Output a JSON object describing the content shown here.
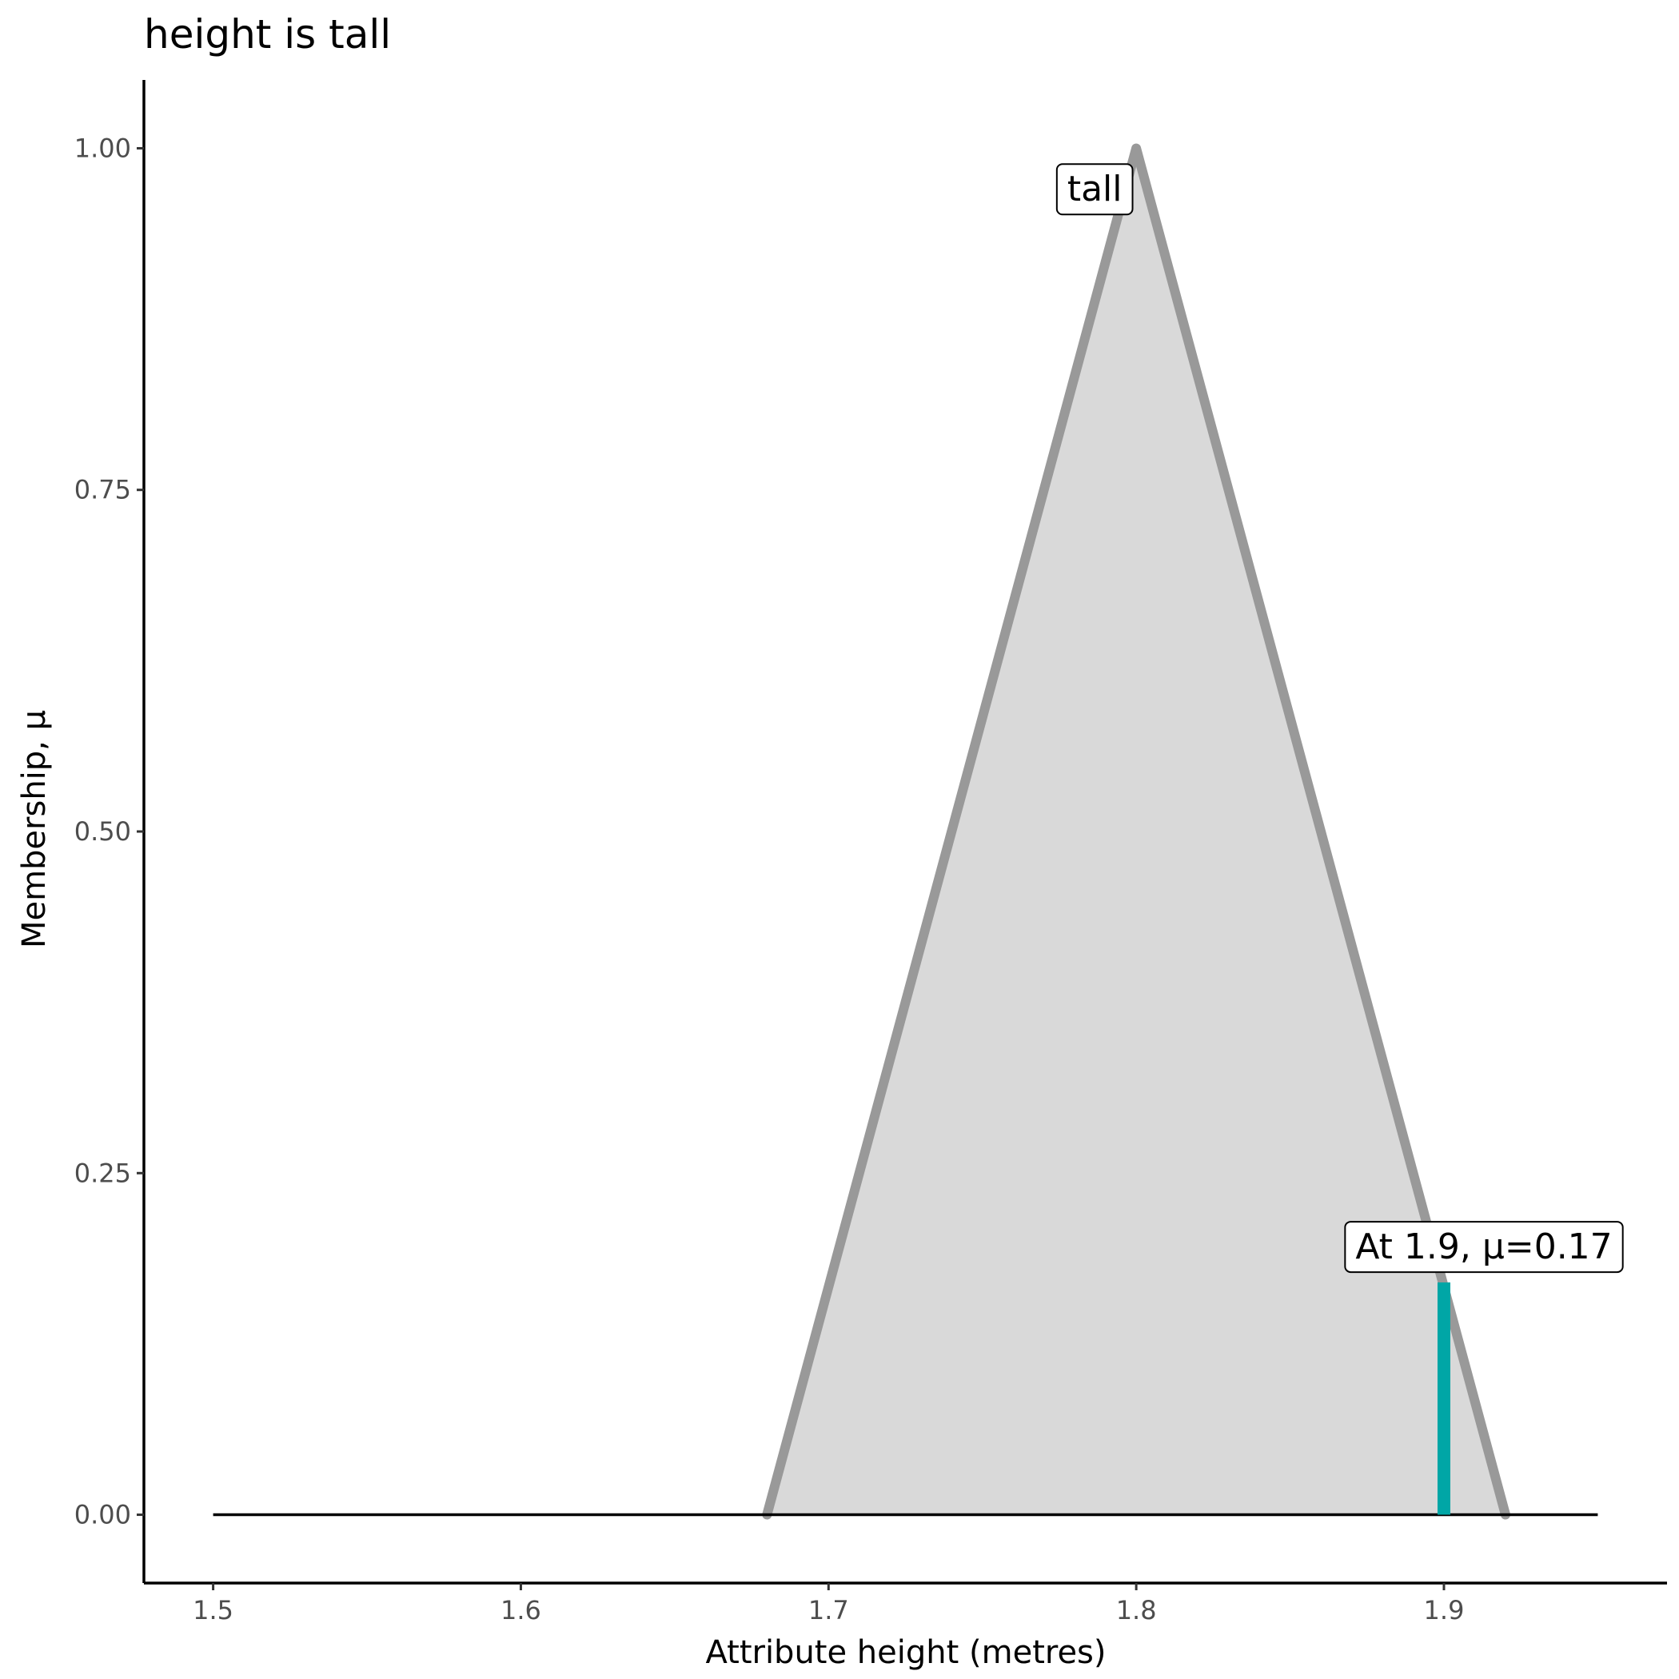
{
  "chart_data": {
    "type": "area",
    "title": "height is tall",
    "xlabel": "Attribute height (metres)",
    "ylabel": "Membership, μ",
    "xlim": [
      1.4775,
      1.9725
    ],
    "ylim": [
      -0.05,
      1.05
    ],
    "x_ticks": [
      {
        "value": 1.5,
        "label": "1.5"
      },
      {
        "value": 1.6,
        "label": "1.6"
      },
      {
        "value": 1.7,
        "label": "1.7"
      },
      {
        "value": 1.8,
        "label": "1.8"
      },
      {
        "value": 1.9,
        "label": "1.9"
      }
    ],
    "y_ticks": [
      {
        "value": 0.0,
        "label": "0.00"
      },
      {
        "value": 0.25,
        "label": "0.25"
      },
      {
        "value": 0.5,
        "label": "0.50"
      },
      {
        "value": 0.75,
        "label": "0.75"
      },
      {
        "value": 1.0,
        "label": "1.00"
      }
    ],
    "grid": false,
    "baseline": {
      "x": [
        1.5,
        1.95
      ],
      "y": 0
    },
    "series": [
      {
        "set": "tall",
        "x": [
          1.68,
          1.8,
          1.92
        ],
        "y": [
          0,
          1,
          0
        ],
        "line_color": "#999999",
        "fill_color": "#d9d9d9"
      }
    ],
    "marker": {
      "x": 1.9,
      "y": 0.17,
      "color": "#00a6a6"
    },
    "annotations": [
      {
        "text": "tall",
        "x": 1.7865,
        "y": 0.97
      },
      {
        "text": "At 1.9, μ=0.17",
        "x": 1.913,
        "y": 0.196
      }
    ]
  }
}
